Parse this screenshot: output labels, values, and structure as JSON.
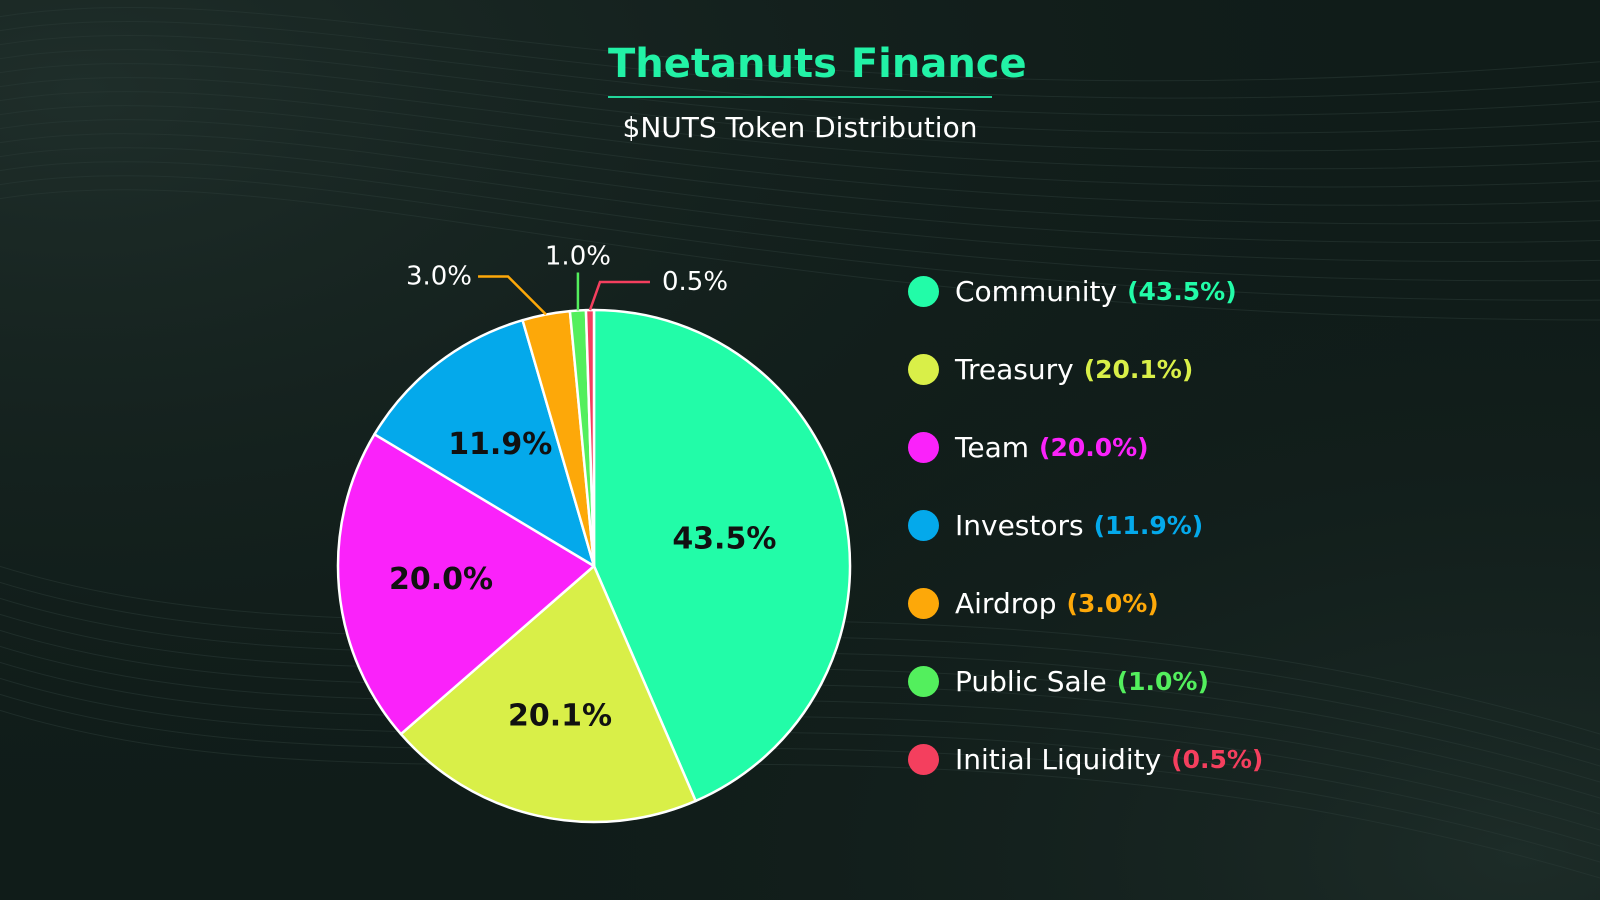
{
  "header": {
    "title": "Thetanuts Finance",
    "subtitle": "$NUTS Token Distribution"
  },
  "colors": {
    "background": "#101c19",
    "title": "#22f2a6",
    "slice_border": "#ffffff"
  },
  "chart_data": {
    "type": "pie",
    "title": "$NUTS Token Distribution",
    "legend": "right",
    "slices": [
      {
        "label": "Community",
        "value": 43.5,
        "display": "43.5%",
        "legend_pct": "(43.5%)",
        "color": "#22fca8",
        "label_color": "#111111"
      },
      {
        "label": "Treasury",
        "value": 20.1,
        "display": "20.1%",
        "legend_pct": "(20.1%)",
        "color": "#d9ef48",
        "label_color": "#111111"
      },
      {
        "label": "Team",
        "value": 20.0,
        "display": "20.0%",
        "legend_pct": "(20.0%)",
        "color": "#fa22fa",
        "label_color": "#111111"
      },
      {
        "label": "Investors",
        "value": 11.9,
        "display": "11.9%",
        "legend_pct": "(11.9%)",
        "color": "#04a9eb",
        "label_color": "#111111"
      },
      {
        "label": "Airdrop",
        "value": 3.0,
        "display": "3.0%",
        "legend_pct": "(3.0%)",
        "color": "#fda809",
        "label_color": "#ffffff"
      },
      {
        "label": "Public Sale",
        "value": 1.0,
        "display": "1.0%",
        "legend_pct": "(1.0%)",
        "color": "#53ef5d",
        "label_color": "#ffffff"
      },
      {
        "label": "Initial Liquidity",
        "value": 0.5,
        "display": "0.5%",
        "legend_pct": "(0.5%)",
        "color": "#f43f5e",
        "label_color": "#ffffff"
      }
    ]
  }
}
